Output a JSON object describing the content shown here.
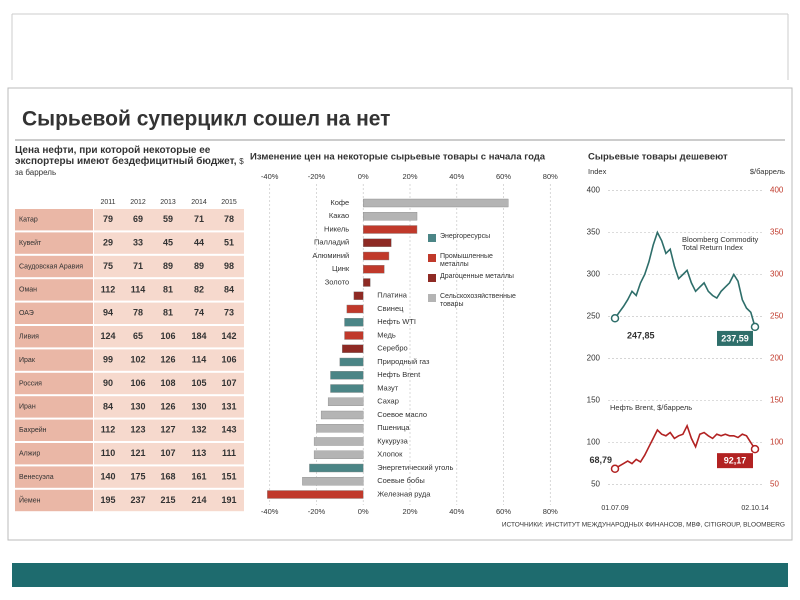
{
  "title": "Сырьевой суперцикл сошел на нет",
  "table": {
    "title": "Цена нефти, при которой некоторые ее экспортеры имеют бездефицитный бюджет,",
    "unit": "$ за баррель",
    "columns": [
      "2011",
      "2012",
      "2013",
      "2014",
      "2015"
    ],
    "rows": [
      [
        "Катар",
        79,
        69,
        59,
        71,
        78
      ],
      [
        "Кувейт",
        29,
        33,
        45,
        44,
        51
      ],
      [
        "Саудовская Аравия",
        75,
        71,
        89,
        89,
        98
      ],
      [
        "Оман",
        112,
        114,
        81,
        82,
        84
      ],
      [
        "ОАЭ",
        94,
        78,
        81,
        74,
        73
      ],
      [
        "Ливия",
        124,
        65,
        106,
        184,
        142
      ],
      [
        "Ирак",
        99,
        102,
        126,
        114,
        106
      ],
      [
        "Россия",
        90,
        106,
        108,
        105,
        107
      ],
      [
        "Иран",
        84,
        130,
        126,
        130,
        131
      ],
      [
        "Бахрейн",
        112,
        123,
        127,
        132,
        143
      ],
      [
        "Алжир",
        110,
        121,
        107,
        113,
        111
      ],
      [
        "Венесуэла",
        140,
        175,
        168,
        161,
        151
      ],
      [
        "Йемен",
        195,
        237,
        215,
        214,
        191
      ]
    ]
  },
  "chart_data": [
    {
      "type": "bar",
      "orientation": "horizontal",
      "title": "Изменение цен на некоторые сырьевые товары с начала года",
      "categories": [
        "Кофе",
        "Какао",
        "Никель",
        "Палладий",
        "Алюминий",
        "Цинк",
        "Золото",
        "Платина",
        "Свинец",
        "Нефть WTI",
        "Медь",
        "Серебро",
        "Природный газ",
        "Нефть Brent",
        "Мазут",
        "Сахар",
        "Соевое масло",
        "Пшеница",
        "Кукуруза",
        "Хлопок",
        "Энергетический уголь",
        "Соевые бобы",
        "Железная руда"
      ],
      "series": [
        {
          "name": "Энергоресурсы",
          "color": "#4b8586",
          "values": [
            null,
            null,
            null,
            null,
            null,
            null,
            null,
            null,
            null,
            -8,
            null,
            null,
            -10,
            -14,
            -14,
            null,
            null,
            null,
            null,
            null,
            -23,
            null,
            null
          ]
        },
        {
          "name": "Промышленные металлы",
          "color": "#c0392b",
          "values": [
            null,
            null,
            23,
            null,
            11,
            9,
            null,
            null,
            -7,
            null,
            -8,
            null,
            null,
            null,
            null,
            null,
            null,
            null,
            null,
            null,
            null,
            null,
            -41
          ]
        },
        {
          "name": "Драгоценные металлы",
          "color": "#8e2a24",
          "values": [
            null,
            null,
            null,
            12,
            null,
            null,
            3,
            -4,
            null,
            null,
            null,
            -9,
            null,
            null,
            null,
            null,
            null,
            null,
            null,
            null,
            null,
            null,
            null
          ]
        },
        {
          "name": "Сельскохозяйственные товары",
          "color": "#b4b4b4",
          "values": [
            62,
            23,
            null,
            null,
            null,
            null,
            null,
            null,
            null,
            null,
            null,
            null,
            null,
            null,
            null,
            -15,
            -18,
            -20,
            -21,
            -21,
            null,
            -26,
            null
          ]
        }
      ],
      "xlim": [
        -45,
        85
      ],
      "xticks": [
        {
          "value": -40,
          "label": "-40%"
        },
        {
          "value": -20,
          "label": "-20%"
        },
        {
          "value": 0,
          "label": "0%"
        },
        {
          "value": 20,
          "label": "20%"
        },
        {
          "value": 40,
          "label": "40%"
        },
        {
          "value": 60,
          "label": "60%"
        },
        {
          "value": 80,
          "label": "80%"
        }
      ],
      "grid": true
    },
    {
      "type": "line",
      "title": "Сырьевые товары дешевеют",
      "y_label": "Index",
      "y2_label": "$/баррель",
      "categories": [
        "01.07.09",
        null,
        null,
        null,
        null,
        null,
        null,
        null,
        null,
        null,
        null,
        null,
        null,
        null,
        null,
        null,
        null,
        null,
        null,
        null,
        null,
        null,
        null,
        null,
        null,
        null,
        null,
        null,
        null,
        null,
        null,
        null,
        null,
        "02.10.14"
      ],
      "series": [
        {
          "name": "Bloomberg Commodity Total Return Index",
          "color": "#2e6e6a",
          "values": [
            247.85,
            255,
            262,
            270,
            280,
            275,
            290,
            300,
            315,
            335,
            350,
            340,
            325,
            330,
            310,
            295,
            300,
            305,
            290,
            280,
            285,
            290,
            280,
            275,
            272,
            280,
            285,
            290,
            300,
            292,
            270,
            260,
            255,
            237.59
          ],
          "value_labels": [
            "247,85",
            null,
            null,
            null,
            null,
            null,
            null,
            null,
            null,
            null,
            null,
            null,
            null,
            null,
            null,
            null,
            null,
            null,
            null,
            null,
            null,
            null,
            null,
            null,
            null,
            null,
            null,
            null,
            null,
            null,
            null,
            null,
            null,
            "237,59"
          ]
        },
        {
          "name": "Нефть Brent, $/баррель",
          "color": "#b22222",
          "axis": "y2",
          "values": [
            68.79,
            72,
            75,
            78,
            75,
            80,
            77,
            85,
            95,
            105,
            115,
            110,
            108,
            112,
            105,
            108,
            110,
            120,
            105,
            95,
            110,
            112,
            108,
            105,
            110,
            108,
            110,
            108,
            108,
            106,
            110,
            108,
            100,
            92.17
          ],
          "value_labels": [
            "68,79",
            null,
            null,
            null,
            null,
            null,
            null,
            null,
            null,
            null,
            null,
            null,
            null,
            null,
            null,
            null,
            null,
            null,
            null,
            null,
            null,
            null,
            null,
            null,
            null,
            null,
            null,
            null,
            null,
            null,
            null,
            null,
            null,
            "92,17"
          ]
        }
      ],
      "ylim": [
        40,
        410
      ],
      "yticks": [
        50,
        100,
        150,
        200,
        250,
        300,
        350,
        400
      ],
      "y2lim": [
        40,
        410
      ],
      "y2ticks": [
        50,
        100,
        150,
        200,
        250,
        300,
        350,
        400
      ],
      "grid": true
    }
  ],
  "source": "ИСТОЧНИКИ: ИНСТИТУТ МЕЖДУНАРОДНЫХ ФИНАНСОВ, МВФ, CITIGROUP, BLOOMBERG"
}
